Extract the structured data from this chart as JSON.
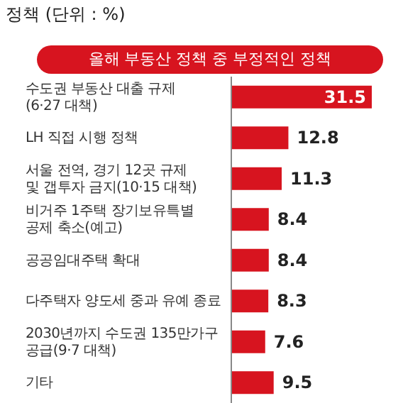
{
  "chart_data": {
    "type": "bar",
    "orientation": "horizontal",
    "title": "올해 부동산 정책 중 부정적인 정책",
    "annotations": [
      "정책 (단위 : %)"
    ],
    "categories": [
      "수도권 부동산 대출 규제\n(6·27 대책)",
      "LH 직접 시행 정책",
      "서울 전역, 경기 12곳 규제\n및 갭투자 금지(10·15 대책)",
      "비거주 1주택 장기보유특별\n공제 축소(예고)",
      "공공임대주택 확대",
      "다주택자 양도세 중과 유예 종료",
      "2030년까지 수도권 135만가구\n공급(9·7 대책)",
      "기타"
    ],
    "values": [
      31.5,
      12.8,
      11.3,
      8.4,
      8.4,
      8.3,
      7.6,
      9.5
    ],
    "color": "#d7141f",
    "data_labels": true
  }
}
